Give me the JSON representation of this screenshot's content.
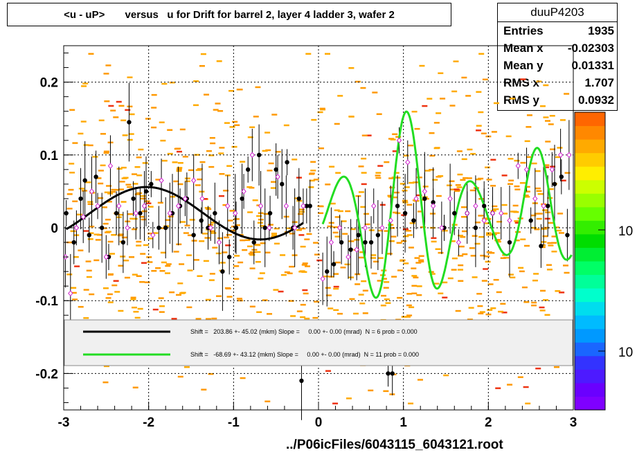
{
  "header": {
    "title": "<u - uP>       versus   u for Drift for barrel 2, layer 4 ladder 3, wafer 2"
  },
  "stats": {
    "name": "duuP4203",
    "rows": [
      {
        "label": "Entries",
        "value": "1935"
      },
      {
        "label": "Mean x",
        "value": "-0.02303"
      },
      {
        "label": "Mean y",
        "value": "0.01331"
      },
      {
        "label": "RMS x",
        "value": "1.707"
      },
      {
        "label": "RMS y",
        "value": "0.0932"
      }
    ]
  },
  "footer": {
    "filename": "../P06icFiles/6043115_6043121.root"
  },
  "legend": {
    "entries": [
      {
        "color": "#000000",
        "text": "Shift =   203.86 +- 45.02 (mkm) Slope =     0.00 +- 0.00 (mrad)  N = 6 prob = 0.000"
      },
      {
        "color": "#22dd22",
        "text": "Shift =   -68.69 +- 43.12 (mkm) Slope =     0.00 +- 0.00 (mrad)  N = 11 prob = 0.000"
      }
    ]
  },
  "colorbar": {
    "tick_labels": [
      "10",
      "10"
    ],
    "colors": [
      "#7f00ff",
      "#6a00ff",
      "#4d1aff",
      "#3333ff",
      "#1a66ff",
      "#0099ff",
      "#00bbff",
      "#00ddee",
      "#00ffcc",
      "#00ff99",
      "#00ff66",
      "#00ee33",
      "#00dd00",
      "#33ee00",
      "#66ff00",
      "#99ff00",
      "#ccff00",
      "#ffee00",
      "#ffcc00",
      "#ffaa00",
      "#ff8800",
      "#ff6600"
    ]
  },
  "chart_data": {
    "type": "scatter",
    "title": "<u - uP>       versus   u for Drift for barrel 2, layer 4 ladder 3, wafer 2",
    "xlim": [
      -3,
      3
    ],
    "ylim": [
      -0.25,
      0.25
    ],
    "x_ticks": [
      -3,
      -2,
      -1,
      0,
      1,
      2,
      3
    ],
    "x_tick_labels": [
      "-3",
      "-2",
      "-1",
      "0",
      "1",
      "2",
      "3"
    ],
    "y_ticks": [
      -0.2,
      -0.1,
      0,
      0.1,
      0.2
    ],
    "y_tick_labels": [
      "-0.2",
      "-0.1",
      "0",
      "0.1",
      "0.2"
    ],
    "grid": true,
    "series": [
      {
        "marker": "black-filled-circle",
        "points": [
          [
            -2.97,
            0.02
          ],
          [
            -2.88,
            -0.02
          ],
          [
            -2.8,
            0.04
          ],
          [
            -2.75,
            0.065
          ],
          [
            -2.7,
            -0.01
          ],
          [
            -2.62,
            0.07
          ],
          [
            -2.55,
            0.0
          ],
          [
            -2.47,
            -0.04
          ],
          [
            -2.38,
            0.02
          ],
          [
            -2.3,
            -0.02
          ],
          [
            -2.23,
            0.145
          ],
          [
            -2.18,
            0.04
          ],
          [
            -2.1,
            0.02
          ],
          [
            -2.03,
            0.05
          ],
          [
            -1.97,
            0.06
          ],
          [
            -1.88,
            0.0
          ],
          [
            -1.8,
            0.0
          ],
          [
            -1.72,
            0.02
          ],
          [
            -1.63,
            0.03
          ],
          [
            -1.55,
            0.04
          ],
          [
            -1.47,
            -0.01
          ],
          [
            -1.38,
            0.01
          ],
          [
            -1.3,
            0.0
          ],
          [
            -1.22,
            0.02
          ],
          [
            -1.13,
            -0.06
          ],
          [
            -1.05,
            -0.04
          ],
          [
            -0.97,
            0.0
          ],
          [
            -0.9,
            0.04
          ],
          [
            -0.83,
            0.08
          ],
          [
            -0.76,
            -0.02
          ],
          [
            -0.7,
            0.1
          ],
          [
            -0.63,
            0.0
          ],
          [
            -0.57,
            0.02
          ],
          [
            -0.5,
            0.08
          ],
          [
            -0.43,
            0.06
          ],
          [
            -0.37,
            0.09
          ],
          [
            -0.3,
            0.0
          ],
          [
            -0.23,
            0.04
          ],
          [
            -0.2,
            -0.21
          ],
          [
            -0.14,
            0.03
          ],
          [
            -0.1,
            0.03
          ],
          [
            0.1,
            -0.06
          ],
          [
            0.18,
            -0.05
          ],
          [
            0.27,
            -0.02
          ],
          [
            0.38,
            -0.03
          ],
          [
            0.47,
            -0.01
          ],
          [
            0.55,
            -0.02
          ],
          [
            0.62,
            -0.02
          ],
          [
            0.7,
            -0.01
          ],
          [
            0.82,
            -0.2
          ],
          [
            0.87,
            -0.2
          ],
          [
            0.93,
            0.03
          ],
          [
            1.02,
            0.02
          ],
          [
            1.12,
            0.01
          ],
          [
            1.25,
            0.04
          ],
          [
            1.35,
            0.035
          ],
          [
            1.48,
            0.0
          ],
          [
            1.6,
            0.02
          ],
          [
            1.75,
            0.02
          ],
          [
            1.85,
            0.0
          ],
          [
            1.95,
            0.03
          ],
          [
            2.05,
            0.02
          ],
          [
            2.25,
            -0.02
          ],
          [
            2.5,
            0.01
          ],
          [
            2.62,
            -0.025
          ],
          [
            2.7,
            0.03
          ],
          [
            2.78,
            0.06
          ],
          [
            2.86,
            0.07
          ],
          [
            2.93,
            -0.01
          ]
        ]
      },
      {
        "marker": "magenta-open-diamond",
        "points": [
          [
            -2.98,
            -0.04
          ],
          [
            -2.92,
            -0.09
          ],
          [
            -2.85,
            0.0
          ],
          [
            -2.77,
            0.015
          ],
          [
            -2.67,
            0.05
          ],
          [
            -2.6,
            0.03
          ],
          [
            -2.5,
            -0.04
          ],
          [
            -2.45,
            0.085
          ],
          [
            -2.35,
            0.03
          ],
          [
            -2.25,
            0.0
          ],
          [
            -2.15,
            0.02
          ],
          [
            -2.05,
            0.03
          ],
          [
            -1.95,
            -0.01
          ],
          [
            -1.85,
            0.065
          ],
          [
            -1.75,
            0.02
          ],
          [
            -1.65,
            0.03
          ],
          [
            -1.57,
            0.04
          ],
          [
            -1.47,
            0.065
          ],
          [
            -1.37,
            0.04
          ],
          [
            -1.27,
            0.0
          ],
          [
            -1.17,
            -0.02
          ],
          [
            -1.07,
            0.03
          ],
          [
            -0.98,
            0.02
          ],
          [
            -0.88,
            0.05
          ],
          [
            -0.78,
            0.1
          ],
          [
            -0.68,
            0.03
          ],
          [
            -0.58,
            0.0
          ],
          [
            -0.48,
            0.07
          ],
          [
            -0.38,
            0.03
          ],
          [
            -0.28,
            0.0
          ],
          [
            -0.18,
            0.03
          ],
          [
            0.05,
            -0.07
          ],
          [
            0.15,
            -0.02
          ],
          [
            0.25,
            0.0
          ],
          [
            0.35,
            -0.04
          ],
          [
            0.45,
            -0.03
          ],
          [
            0.55,
            0.0
          ],
          [
            0.65,
            0.03
          ],
          [
            0.75,
            0.0
          ],
          [
            0.85,
            0.01
          ],
          [
            0.95,
            0.12
          ],
          [
            1.05,
            0.09
          ],
          [
            1.15,
            0.04
          ],
          [
            1.25,
            0.05
          ],
          [
            1.35,
            0.03
          ],
          [
            1.45,
            0.0
          ],
          [
            1.55,
            0.04
          ],
          [
            1.65,
            -0.02
          ],
          [
            1.75,
            0.02
          ],
          [
            1.85,
            0.03
          ],
          [
            1.95,
            0.01
          ],
          [
            2.05,
            0.02
          ],
          [
            2.15,
            0.02
          ],
          [
            2.25,
            0.01
          ],
          [
            2.35,
            0.085
          ],
          [
            2.45,
            0.08
          ],
          [
            2.55,
            0.04
          ],
          [
            2.65,
            0.03
          ],
          [
            2.75,
            0.08
          ],
          [
            2.85,
            0.1
          ],
          [
            2.95,
            0.1
          ]
        ]
      }
    ],
    "fits": [
      {
        "color": "#000000",
        "shift_mkm": 203.86,
        "shift_err": 45.02,
        "slope_mrad": 0.0,
        "slope_err": 0.0,
        "N": 6,
        "prob": 0.0
      },
      {
        "color": "#22dd22",
        "shift_mkm": -68.69,
        "shift_err": 43.12,
        "slope_mrad": 0.0,
        "slope_err": 0.0,
        "N": 11,
        "prob": 0.0
      }
    ]
  }
}
